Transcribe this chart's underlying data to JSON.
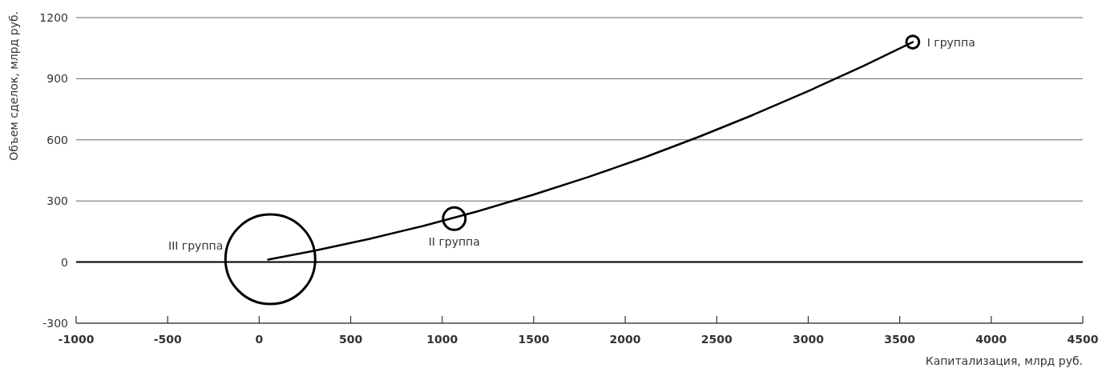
{
  "chart_data": {
    "type": "bubble",
    "xlabel": "Капитализация, млрд руб.",
    "ylabel": "Объем сделок, млрд руб.",
    "xlim": [
      -1000,
      4500
    ],
    "xticks": [
      -1000,
      -500,
      0,
      500,
      1000,
      1500,
      2000,
      2500,
      3000,
      3500,
      4000,
      4500
    ],
    "ylim": [
      -300,
      1200
    ],
    "yticks": [
      -300,
      0,
      300,
      600,
      900,
      1200
    ],
    "grid": "y",
    "ref_lines": [
      {
        "axis": "y",
        "value": 0,
        "color": "#000000"
      }
    ],
    "series": [
      {
        "name": "III группа",
        "color": "#000000",
        "x": [
          61
        ],
        "values": [
          14
        ],
        "sizes": [
          1
        ]
      },
      {
        "name": "II группа",
        "color": "#000000",
        "x": [
          1066
        ],
        "values": [
          213
        ],
        "sizes": [
          0.0625
        ]
      },
      {
        "name": "I группа",
        "color": "#000000",
        "x": [
          3571
        ],
        "values": [
          1080
        ],
        "sizes": [
          0.02
        ]
      },
      {
        "type": "line",
        "color": "#000000",
        "x": [
          49,
          300,
          600,
          900,
          1200,
          1500,
          1800,
          2100,
          2400,
          2700,
          3000,
          3300,
          3571
        ],
        "values": [
          12,
          55,
          113,
          178,
          251,
          331,
          418,
          512,
          614,
          723,
          839,
          962,
          1080
        ]
      }
    ]
  }
}
